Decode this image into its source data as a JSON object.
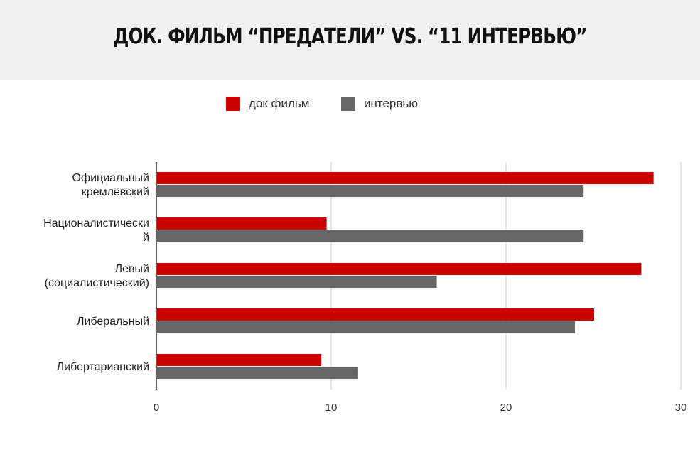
{
  "header": {
    "title": "ДОК. ФИЛЬМ “ПРЕДАТЕЛИ” VS. “11 ИНТЕРВЬЮ”"
  },
  "chart_data": {
    "type": "bar",
    "orientation": "horizontal",
    "title": "ДОК. ФИЛЬМ “ПРЕДАТЕЛИ” VS. “11 ИНТЕРВЬЮ”",
    "categories": [
      [
        "Официальный",
        "кремлёвский"
      ],
      [
        "Националистически",
        "й"
      ],
      [
        "Левый",
        "(социалистический)"
      ],
      [
        "Либеральный"
      ],
      [
        "Либертарианский"
      ]
    ],
    "series": [
      {
        "name": "док фильм",
        "color": "#cc0000",
        "values": [
          28.4,
          9.7,
          27.7,
          25.0,
          9.4
        ]
      },
      {
        "name": "интервью",
        "color": "#666666",
        "values": [
          24.4,
          24.4,
          16.0,
          23.9,
          11.5
        ]
      }
    ],
    "xlim": [
      0,
      30
    ],
    "xticks": [
      "0",
      "10",
      "20",
      "30"
    ],
    "grid": true,
    "legend_position": "top"
  }
}
